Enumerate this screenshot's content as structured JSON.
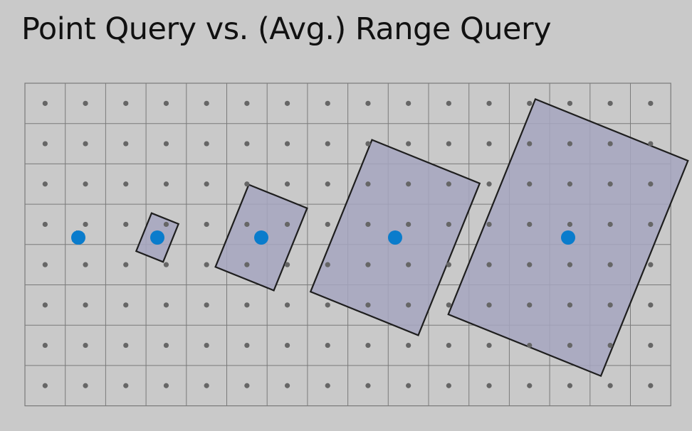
{
  "title": "Point Query vs. (Avg.) Range Query",
  "grid": {
    "columns": 16,
    "rows": 8,
    "sample_points_per_cell": 1
  },
  "queries": [
    {
      "name": "point-query",
      "label": "Point Query",
      "scale": 0.15
    },
    {
      "name": "range-query-small",
      "label": "Range Query",
      "scale": 0.6
    },
    {
      "name": "range-query-medium",
      "label": "Range Query",
      "scale": 1.3
    },
    {
      "name": "range-query-large",
      "label": "Range Query",
      "scale": 2.4
    },
    {
      "name": "range-query-xlarge",
      "label": "Range Query",
      "scale": 3.4
    }
  ],
  "colors": {
    "background": "#c9c9c9",
    "grid_line": "#7a7a7a",
    "sample_point": "#666666",
    "query_center": "#0a7ccc",
    "query_fill": "#a6a6c0",
    "query_stroke": "#1e1e1e"
  }
}
